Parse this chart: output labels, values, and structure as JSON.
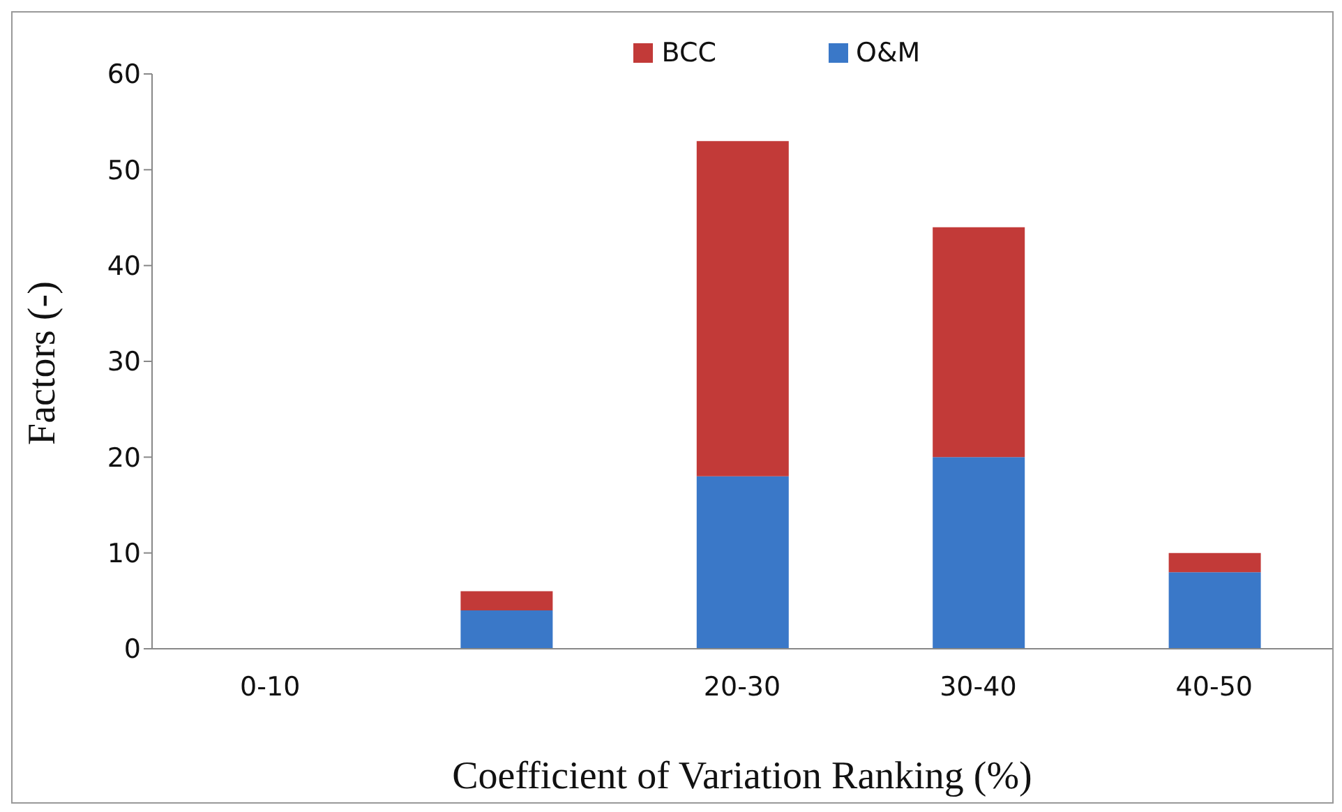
{
  "chart_data": {
    "type": "bar",
    "stacked": true,
    "xlabel": "Coefficient of Variation Ranking (%)",
    "ylabel": "Factors (-)",
    "categories": [
      "0-10",
      null,
      "20-30",
      "30-40",
      "40-50"
    ],
    "series": [
      {
        "name": "O&M",
        "color": "#3a78c8",
        "values": [
          0,
          4,
          18,
          20,
          8
        ]
      },
      {
        "name": "BCC",
        "color": "#c23a38",
        "values": [
          0,
          2,
          35,
          24,
          2
        ]
      }
    ],
    "ylim": [
      0,
      60
    ],
    "yticks": [
      0,
      10,
      20,
      30,
      40,
      50,
      60
    ],
    "grid": false,
    "legend": "top"
  }
}
